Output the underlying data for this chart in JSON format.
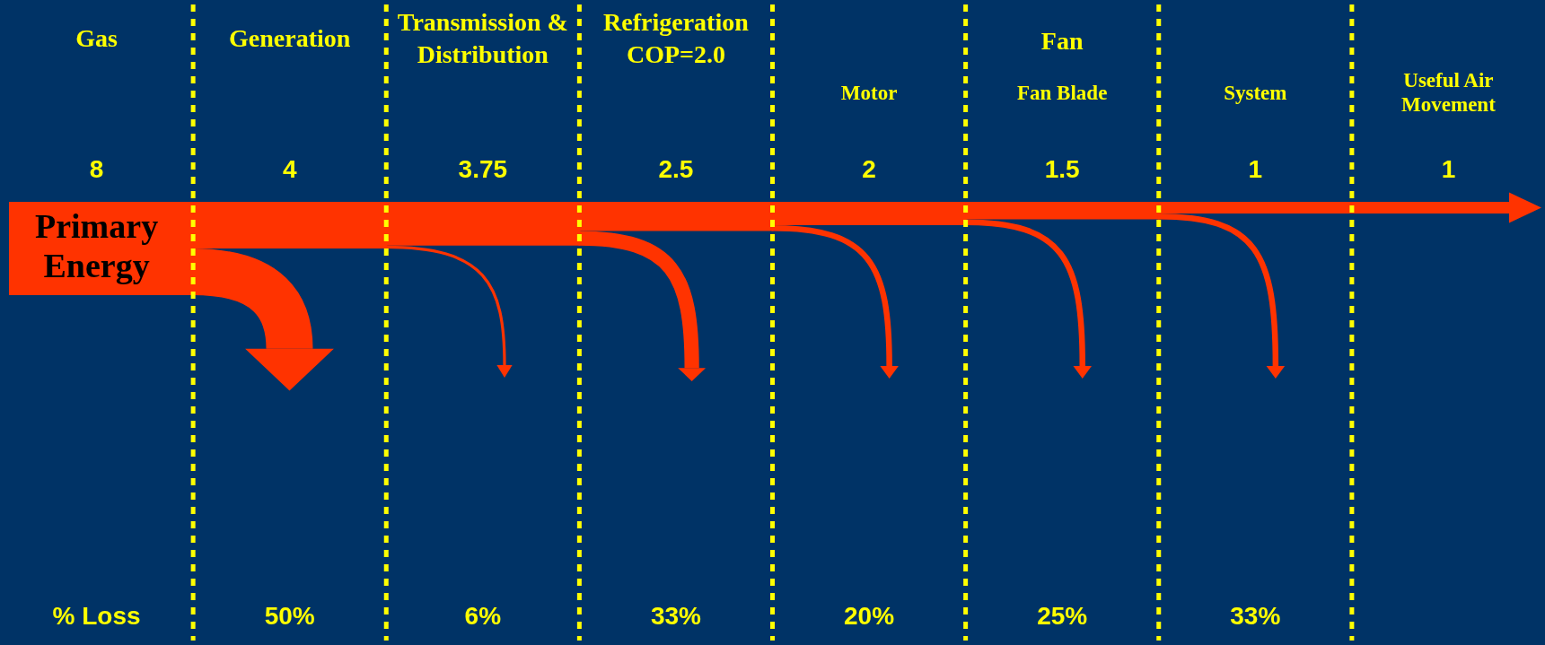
{
  "chart_data": {
    "type": "other",
    "categories": [
      "Gas",
      "Generation",
      "Transmission & Distribution",
      "Refrigeration COP=2.0",
      "Motor",
      "Fan Blade",
      "System",
      "Useful Air Movement"
    ],
    "data_labels": true,
    "series": [
      {
        "color": "#ff3300",
        "values": [
          8,
          4,
          3.75,
          2.5,
          2,
          1.5,
          1,
          1
        ]
      },
      {
        "name": "% Loss",
        "color": "#ffff00",
        "values": [
          null,
          50,
          6,
          33,
          20,
          25,
          33,
          null
        ],
        "value_labels": [
          null,
          "50%",
          "6%",
          "33%",
          "20%",
          "25%",
          "33%",
          null
        ]
      }
    ],
    "annotations": [
      "Primary Energy",
      "Fan"
    ]
  }
}
